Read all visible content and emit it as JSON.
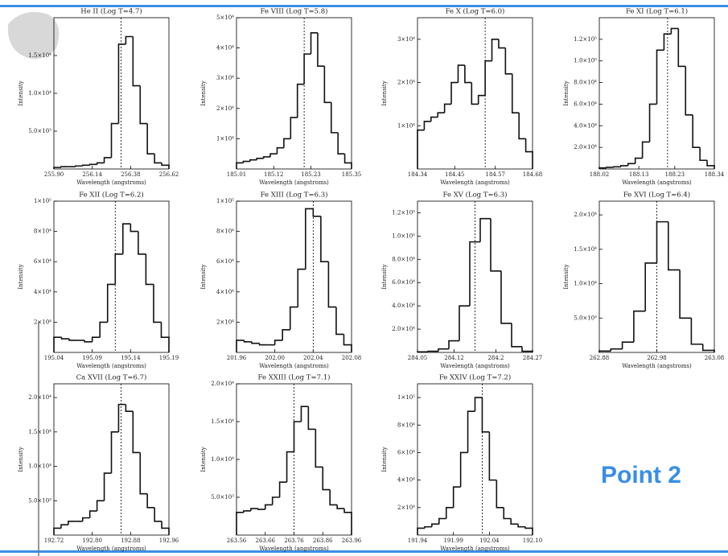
{
  "chart_data": [
    {
      "type": "histogram",
      "title": "He II (Log T=4.7)",
      "xlabel": "Wavelength (angstroms)",
      "ylabel": "Intensity",
      "xlim": [
        255.9,
        256.62
      ],
      "xticks": [
        {
          "value": 255.9,
          "label": "255.90"
        },
        256.14,
        256.38,
        256.62
      ],
      "ylim": [
        0,
        20000
      ],
      "yticks": [
        {
          "value": 5000,
          "label": "5.0×10³"
        },
        {
          "value": 10000,
          "label": "1.0×10⁴"
        },
        {
          "value": 15000,
          "label": "1.5×10⁴"
        }
      ],
      "bins": [
        255.9,
        255.945,
        255.99,
        256.035,
        256.08,
        256.125,
        256.17,
        256.215,
        256.26,
        256.305,
        256.35,
        256.395,
        256.44,
        256.485,
        256.53,
        256.575,
        256.62
      ],
      "counts": [
        200,
        300,
        300,
        400,
        500,
        600,
        800,
        1500,
        6000,
        16500,
        17500,
        11000,
        6000,
        2000,
        800,
        500
      ],
      "line_center": 256.32
    },
    {
      "type": "histogram",
      "title": "Fe VIII (Log T=5.8)",
      "xlabel": "Wavelength (angstroms)",
      "ylabel": "Intensity",
      "xlim": [
        185.01,
        185.35
      ],
      "xticks": [
        185.01,
        185.12,
        185.23,
        185.35
      ],
      "ylim": [
        0,
        50000
      ],
      "yticks": [
        {
          "value": 10000,
          "label": "1×10⁴"
        },
        {
          "value": 20000,
          "label": "2×10⁴"
        },
        {
          "value": 30000,
          "label": "3×10⁴"
        },
        {
          "value": 40000,
          "label": "4×10⁴"
        },
        {
          "value": 50000,
          "label": "5×10⁴"
        }
      ],
      "bins": [
        185.01,
        185.03,
        185.05,
        185.07,
        185.09,
        185.11,
        185.13,
        185.15,
        185.17,
        185.19,
        185.21,
        185.23,
        185.25,
        185.27,
        185.29,
        185.31,
        185.33,
        185.35
      ],
      "counts": [
        2000,
        2500,
        3000,
        3500,
        4000,
        5000,
        7000,
        10000,
        17000,
        28000,
        38000,
        45000,
        34000,
        22000,
        12000,
        5000,
        2000
      ],
      "line_center": 185.21
    },
    {
      "type": "histogram",
      "title": "Fe X (Log T=6.0)",
      "xlabel": "Wavelength (angstroms)",
      "ylabel": "Intensity",
      "xlim": [
        184.34,
        184.68
      ],
      "xticks": [
        184.34,
        184.45,
        184.57,
        184.68
      ],
      "ylim": [
        0,
        35000
      ],
      "yticks": [
        {
          "value": 10000,
          "label": "1×10⁴"
        },
        {
          "value": 20000,
          "label": "2×10⁴"
        },
        {
          "value": 30000,
          "label": "3×10⁴"
        }
      ],
      "bins": [
        184.34,
        184.36,
        184.38,
        184.4,
        184.42,
        184.44,
        184.46,
        184.48,
        184.5,
        184.52,
        184.54,
        184.56,
        184.58,
        184.6,
        184.62,
        184.64,
        184.66,
        184.68
      ],
      "counts": [
        9000,
        11000,
        12000,
        13000,
        15000,
        20000,
        24000,
        20000,
        15000,
        17000,
        25000,
        30000,
        28000,
        22000,
        13000,
        7000,
        4000
      ],
      "line_center": 184.54
    },
    {
      "type": "histogram",
      "title": "Fe XI (Log T=6.1)",
      "xlabel": "Wavelength (angstroms)",
      "ylabel": "Intensity",
      "xlim": [
        188.02,
        188.34
      ],
      "xticks": [
        188.02,
        188.13,
        188.23,
        188.34
      ],
      "ylim": [
        0,
        140000
      ],
      "yticks": [
        {
          "value": 20000,
          "label": "2.0×10⁴"
        },
        {
          "value": 40000,
          "label": "4.0×10⁴"
        },
        {
          "value": 60000,
          "label": "6.0×10⁴"
        },
        {
          "value": 80000,
          "label": "8.0×10⁴"
        },
        {
          "value": 100000,
          "label": "1.0×10⁵"
        },
        {
          "value": 120000,
          "label": "1.2×10⁵"
        }
      ],
      "bins": [
        188.02,
        188.04,
        188.06,
        188.08,
        188.1,
        188.12,
        188.14,
        188.16,
        188.18,
        188.2,
        188.22,
        188.24,
        188.26,
        188.28,
        188.3,
        188.32,
        188.34
      ],
      "counts": [
        1000,
        1500,
        2000,
        3000,
        5000,
        10000,
        25000,
        60000,
        110000,
        125000,
        130000,
        95000,
        50000,
        20000,
        8000,
        3000
      ],
      "line_center": 188.21
    },
    {
      "type": "histogram",
      "title": "Fe XII (Log T=6.2)",
      "xlabel": "Wavelength (angstroms)",
      "ylabel": "Intensity",
      "xlim": [
        195.04,
        195.19
      ],
      "xticks": [
        195.04,
        195.09,
        195.14,
        195.19
      ],
      "ylim": [
        0,
        100000
      ],
      "yticks": [
        {
          "value": 20000,
          "label": "2×10⁴"
        },
        {
          "value": 40000,
          "label": "4×10⁴"
        },
        {
          "value": 60000,
          "label": "6×10⁴"
        },
        {
          "value": 80000,
          "label": "8×10⁴"
        },
        {
          "value": 100000,
          "label": "1×10⁵"
        }
      ],
      "bins": [
        195.04,
        195.05,
        195.06,
        195.07,
        195.08,
        195.09,
        195.1,
        195.11,
        195.12,
        195.13,
        195.14,
        195.15,
        195.16,
        195.17,
        195.18,
        195.19
      ],
      "counts": [
        10000,
        9000,
        8000,
        8000,
        7000,
        10000,
        20000,
        45000,
        65000,
        85000,
        80000,
        65000,
        45000,
        20000,
        10000
      ],
      "line_center": 195.12
    },
    {
      "type": "histogram",
      "title": "Fe XIII (Log T=6.3)",
      "xlabel": "Wavelength (angstroms)",
      "ylabel": "Intensity",
      "xlim": [
        201.96,
        202.08
      ],
      "xticks": [
        201.96,
        {
          "value": 202,
          "label": "202.00"
        },
        202.04,
        202.08
      ],
      "ylim": [
        0,
        100000
      ],
      "yticks": [
        {
          "value": 20000,
          "label": "2×10⁴"
        },
        {
          "value": 40000,
          "label": "4×10⁴"
        },
        {
          "value": 60000,
          "label": "6×10⁴"
        },
        {
          "value": 80000,
          "label": "8×10⁴"
        },
        {
          "value": 100000,
          "label": "1×10⁵"
        }
      ],
      "bins": [
        201.96,
        201.968,
        201.976,
        201.984,
        201.992,
        202.0,
        202.008,
        202.016,
        202.024,
        202.032,
        202.04,
        202.048,
        202.056,
        202.064,
        202.072,
        202.08
      ],
      "counts": [
        8000,
        7000,
        6000,
        5000,
        5000,
        8000,
        15000,
        30000,
        55000,
        95000,
        90000,
        60000,
        30000,
        12000,
        5000
      ],
      "line_center": 202.04
    },
    {
      "type": "histogram",
      "title": "Fe XV (Log T=6.3)",
      "xlabel": "Wavelength (angstroms)",
      "ylabel": "Intensity",
      "xlim": [
        284.05,
        284.27
      ],
      "xticks": [
        284.05,
        284.12,
        284.2,
        284.27
      ],
      "ylim": [
        0,
        130000
      ],
      "yticks": [
        {
          "value": 20000,
          "label": "2.0×10⁴"
        },
        {
          "value": 40000,
          "label": "4.0×10⁴"
        },
        {
          "value": 60000,
          "label": "6.0×10⁴"
        },
        {
          "value": 80000,
          "label": "8.0×10⁴"
        },
        {
          "value": 100000,
          "label": "1.0×10⁵"
        },
        {
          "value": 120000,
          "label": "1.2×10⁵"
        }
      ],
      "bins": [
        284.05,
        284.07,
        284.09,
        284.11,
        284.13,
        284.15,
        284.17,
        284.19,
        284.21,
        284.23,
        284.25,
        284.27
      ],
      "counts": [
        500,
        1000,
        3000,
        10000,
        40000,
        95000,
        115000,
        70000,
        25000,
        5000,
        1000
      ],
      "line_center": 284.16
    },
    {
      "type": "histogram",
      "title": "Fe XVI (Log T=6.4)",
      "xlabel": "Wavelength (angstroms)",
      "ylabel": "Intensity",
      "xlim": [
        262.88,
        263.08
      ],
      "xticks": [
        262.88,
        262.98,
        263.08
      ],
      "ylim": [
        0,
        22000
      ],
      "yticks": [
        {
          "value": 5000,
          "label": "5.0×10³"
        },
        {
          "value": 10000,
          "label": "1.0×10⁴"
        },
        {
          "value": 15000,
          "label": "1.5×10⁴"
        },
        {
          "value": 20000,
          "label": "2.0×10⁴"
        }
      ],
      "bins": [
        262.88,
        262.9,
        262.92,
        262.94,
        262.96,
        262.98,
        263.0,
        263.02,
        263.04,
        263.06,
        263.08
      ],
      "counts": [
        200,
        500,
        1500,
        6000,
        13000,
        19000,
        12000,
        5000,
        1200,
        300
      ],
      "line_center": 262.98
    },
    {
      "type": "histogram",
      "title": "Ca XVII (Log T=6.7)",
      "xlabel": "Wavelength (angstroms)",
      "ylabel": "Intensity",
      "xlim": [
        192.72,
        192.96
      ],
      "xticks": [
        192.72,
        {
          "value": 192.8,
          "label": "192.80"
        },
        192.88,
        192.96
      ],
      "ylim": [
        0,
        22000
      ],
      "yticks": [
        {
          "value": 5000,
          "label": "5.0×10³"
        },
        {
          "value": 10000,
          "label": "1.0×10⁴"
        },
        {
          "value": 15000,
          "label": "1.5×10⁴"
        },
        {
          "value": 20000,
          "label": "2.0×10⁴"
        }
      ],
      "bins": [
        192.72,
        192.735,
        192.75,
        192.765,
        192.78,
        192.795,
        192.81,
        192.825,
        192.84,
        192.855,
        192.87,
        192.885,
        192.9,
        192.915,
        192.93,
        192.945,
        192.96
      ],
      "counts": [
        1000,
        1500,
        2000,
        2000,
        2500,
        3500,
        5000,
        9000,
        15000,
        19000,
        18000,
        12000,
        6000,
        4000,
        2000,
        1000
      ],
      "line_center": 192.86
    },
    {
      "type": "histogram",
      "title": "Fe XXIII (Log T=7.1)",
      "xlabel": "Wavelength (angstroms)",
      "ylabel": "Intensity",
      "xlim": [
        263.56,
        263.96
      ],
      "xticks": [
        263.56,
        263.66,
        263.76,
        263.86,
        263.96
      ],
      "ylim": [
        0,
        20000
      ],
      "yticks": [
        {
          "value": 5000,
          "label": "5.0×10³"
        },
        {
          "value": 10000,
          "label": "1.0×10⁴"
        },
        {
          "value": 15000,
          "label": "1.5×10⁴"
        },
        {
          "value": 20000,
          "label": "2.0×10⁴"
        }
      ],
      "bins": [
        263.56,
        263.585,
        263.61,
        263.635,
        263.66,
        263.685,
        263.71,
        263.735,
        263.76,
        263.785,
        263.81,
        263.835,
        263.86,
        263.885,
        263.91,
        263.935,
        263.96
      ],
      "counts": [
        3000,
        3200,
        3500,
        3400,
        4000,
        5000,
        7000,
        11000,
        15000,
        17000,
        14000,
        9000,
        6000,
        4000,
        3500,
        3000
      ],
      "line_center": 263.76
    },
    {
      "type": "histogram",
      "title": "Fe XXIV (Log T=7.2)",
      "xlabel": "Wavelength (angstroms)",
      "ylabel": "Intensity",
      "xlim": [
        191.94,
        192.1
      ],
      "xticks": [
        191.94,
        191.99,
        192.04,
        {
          "value": 192.1,
          "label": "192.10"
        }
      ],
      "ylim": [
        0,
        110000
      ],
      "yticks": [
        {
          "value": 20000,
          "label": "2×10⁴"
        },
        {
          "value": 40000,
          "label": "4×10⁴"
        },
        {
          "value": 60000,
          "label": "6×10⁴"
        },
        {
          "value": 80000,
          "label": "8×10⁴"
        },
        {
          "value": 100000,
          "label": "1×10⁵"
        }
      ],
      "bins": [
        191.94,
        191.95,
        191.96,
        191.97,
        191.98,
        191.99,
        192.0,
        192.01,
        192.02,
        192.03,
        192.04,
        192.05,
        192.06,
        192.07,
        192.08,
        192.09,
        192.1
      ],
      "counts": [
        5000,
        6000,
        8000,
        12000,
        20000,
        35000,
        60000,
        90000,
        100000,
        75000,
        40000,
        20000,
        12000,
        8000,
        6000,
        5000
      ],
      "line_center": 192.03
    }
  ],
  "callout": "Point 2"
}
